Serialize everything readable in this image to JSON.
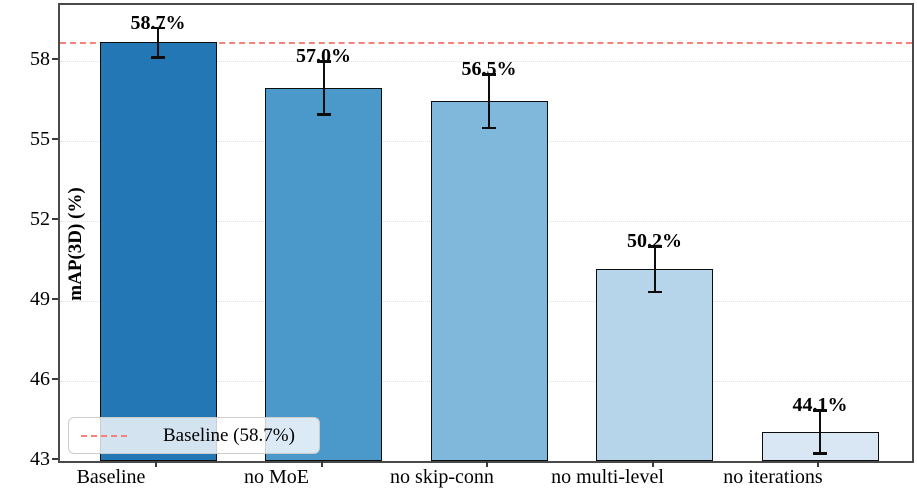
{
  "chart_data": {
    "type": "bar",
    "title": "",
    "ylabel": "mAP(3D) (%)",
    "xlabel": "",
    "ylim": [
      43,
      60.1
    ],
    "yticks": [
      43,
      46,
      49,
      52,
      55,
      58
    ],
    "categories": [
      "Baseline",
      "no MoE",
      "no skip-conn",
      "no multi-level",
      "no iterations"
    ],
    "values": [
      58.7,
      57.0,
      56.5,
      50.2,
      44.1
    ],
    "value_labels": [
      "58.7%",
      "57.0%",
      "56.5%",
      "50.2%",
      "44.1%"
    ],
    "errors": [
      0.55,
      1.0,
      1.0,
      0.85,
      0.8
    ],
    "bar_colors": [
      "#2377b4",
      "#4b98ca",
      "#80b8db",
      "#b6d4ea",
      "#d9e7f5"
    ],
    "bar_edge_color": "#0d0d0d",
    "error_color": "#0d0d0d",
    "grid": {
      "axis": "y",
      "style": "dotted",
      "color": "#e2e2e2"
    },
    "baseline": {
      "value": 58.7,
      "color": "#f2837b",
      "style": "dashed"
    },
    "legend": {
      "position": "lower-left",
      "entries": [
        {
          "label": "Baseline (58.7%)",
          "line_color": "#f2837b",
          "line_style": "dashed"
        }
      ]
    }
  }
}
